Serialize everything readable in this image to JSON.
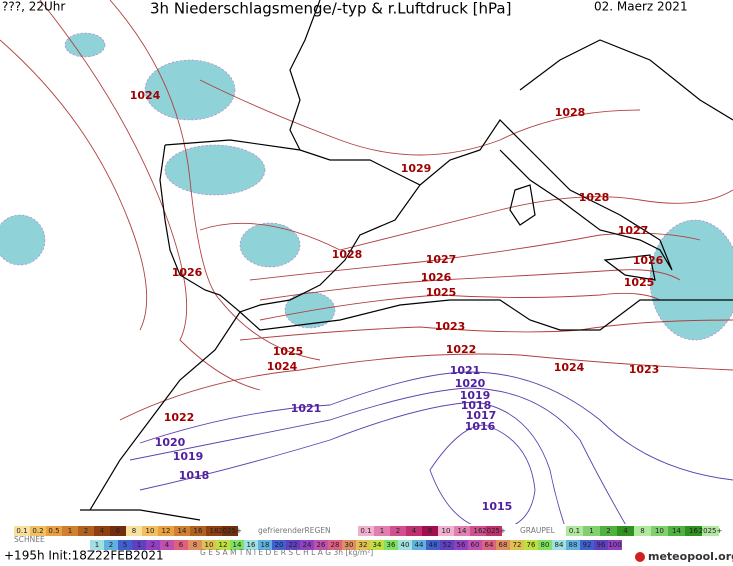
{
  "header": {
    "left": "???, 22Uhr",
    "title": "3h Niederschlagsmenge/-typ & r.Luftdruck [hPa]",
    "date": "02. Maerz 2021"
  },
  "isobar_labels": [
    {
      "text": "1024",
      "color": "#a00000"
    },
    {
      "text": "1028",
      "color": "#a00000"
    },
    {
      "text": "1029",
      "color": "#a00000"
    },
    {
      "text": "1028",
      "color": "#a00000"
    },
    {
      "text": "1027",
      "color": "#a00000"
    },
    {
      "text": "1026",
      "color": "#a00000"
    },
    {
      "text": "1028",
      "color": "#a00000"
    },
    {
      "text": "1027",
      "color": "#a00000"
    },
    {
      "text": "1026",
      "color": "#a00000"
    },
    {
      "text": "1025",
      "color": "#a00000"
    },
    {
      "text": "1026",
      "color": "#a00000"
    },
    {
      "text": "1025",
      "color": "#a00000"
    },
    {
      "text": "1023",
      "color": "#a00000"
    },
    {
      "text": "1022",
      "color": "#a00000"
    },
    {
      "text": "1025",
      "color": "#a00000"
    },
    {
      "text": "1024",
      "color": "#a00000"
    },
    {
      "text": "1024",
      "color": "#a00000"
    },
    {
      "text": "1023",
      "color": "#a00000"
    },
    {
      "text": "1021",
      "color": "#5020a0"
    },
    {
      "text": "1020",
      "color": "#5020a0"
    },
    {
      "text": "1019",
      "color": "#5020a0"
    },
    {
      "text": "1018",
      "color": "#5020a0"
    },
    {
      "text": "1017",
      "color": "#5020a0"
    },
    {
      "text": "1016",
      "color": "#5020a0"
    },
    {
      "text": "1021",
      "color": "#5020a0"
    },
    {
      "text": "1022",
      "color": "#a00000"
    },
    {
      "text": "1020",
      "color": "#5020a0"
    },
    {
      "text": "1019",
      "color": "#5020a0"
    },
    {
      "text": "1018",
      "color": "#5020a0"
    },
    {
      "text": "1015",
      "color": "#5020a0"
    }
  ],
  "legend": {
    "snow": {
      "name": "SCHNEE",
      "scale": [
        "0.1",
        "0.2",
        "0.5",
        "1",
        "2",
        "4",
        "6",
        "8",
        "10",
        "12",
        "14",
        "16",
        "18",
        "2025+"
      ]
    },
    "freezing_rain": {
      "name": "gefrierenderREGEN",
      "scale": [
        "0.1",
        "1",
        "2",
        "4",
        "8",
        "10",
        "14",
        "16",
        "2025+"
      ]
    },
    "graupel": {
      "name": "GRAUPEL",
      "scale": [
        "0.1",
        "1",
        "2",
        "4",
        "8",
        "10",
        "14",
        "16",
        "2025+"
      ]
    },
    "total": {
      "name": "G E S A M T N I E D E R S C H L A G   3h  [kg/m²]",
      "scale": [
        "1",
        "2",
        "5",
        "1",
        "2",
        "4",
        "6",
        "8",
        "10",
        "12",
        "14",
        "16",
        "18",
        "20",
        "22",
        "24",
        "26",
        "28",
        "30",
        "32",
        "34",
        "36",
        "40",
        "44",
        "48",
        "52",
        "56",
        "60",
        "64",
        "68",
        "72",
        "76",
        "80",
        "84",
        "88",
        "92",
        "96",
        "100"
      ]
    }
  },
  "footer": {
    "run": "+195h Init:18Z22FEB2021",
    "brand": "meteopool.org"
  }
}
